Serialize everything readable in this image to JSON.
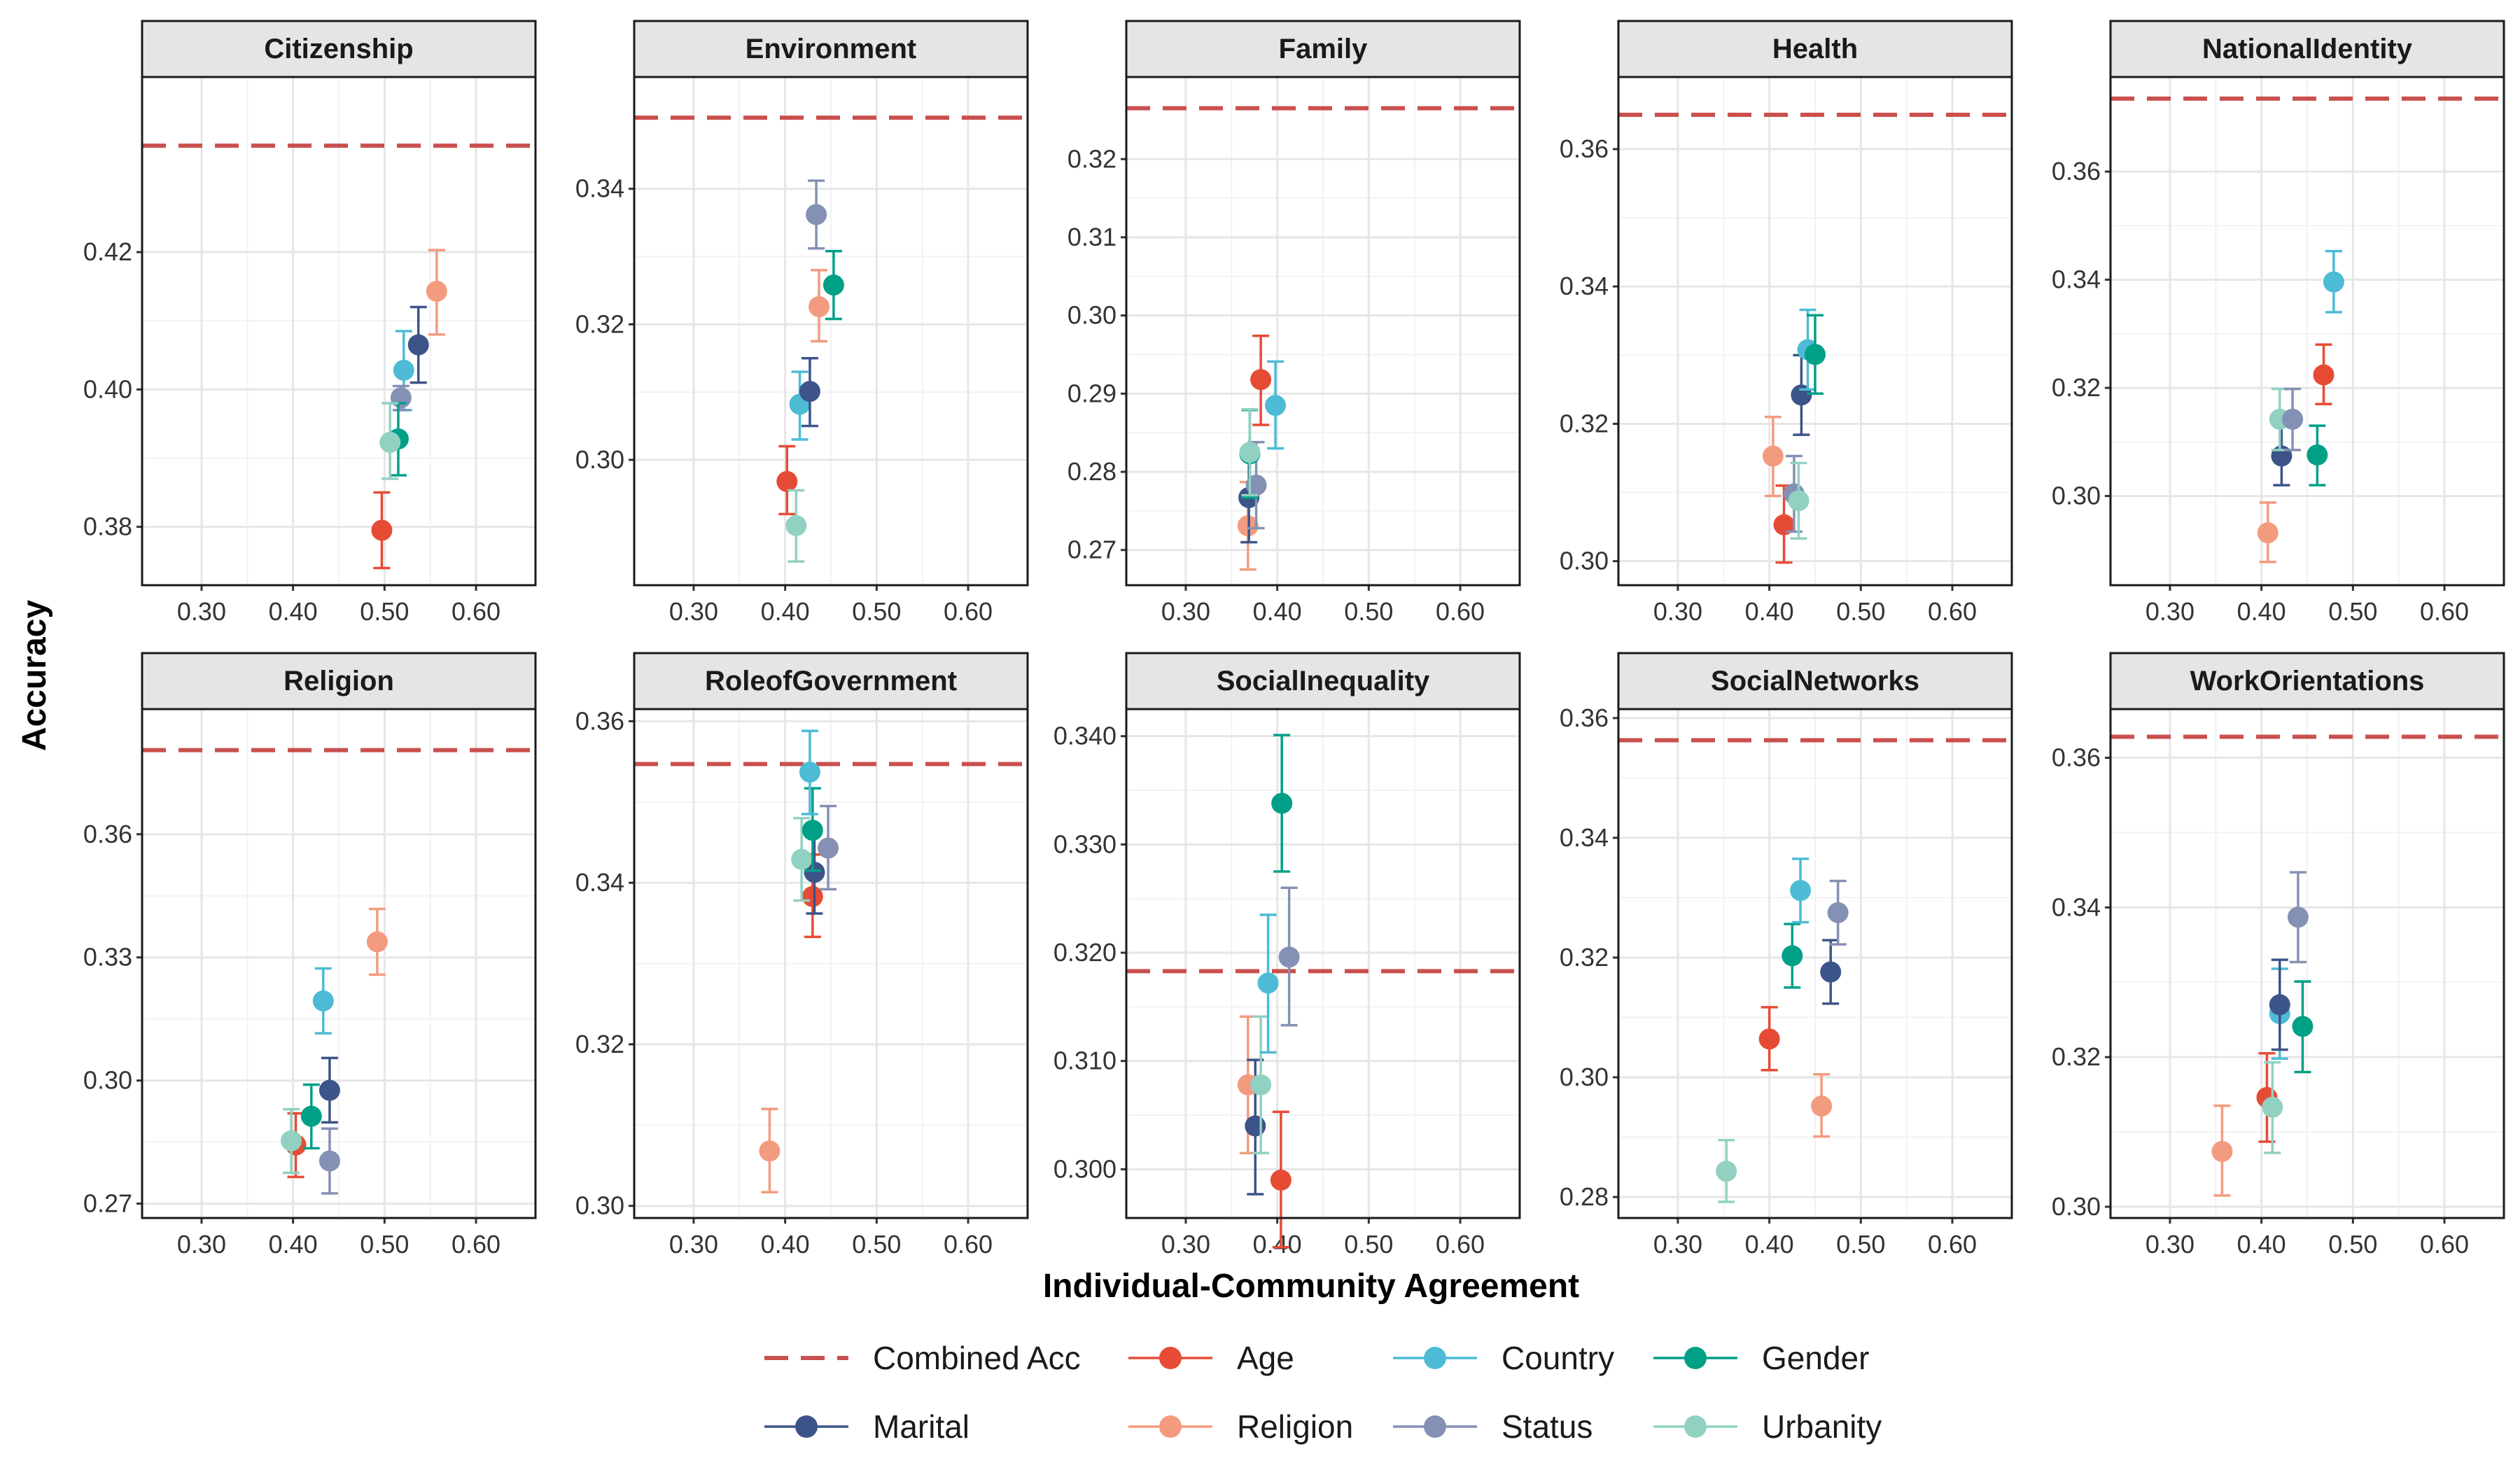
{
  "chart_data": {
    "type": "scatter",
    "xlabel": "Individual-Community Agreement",
    "ylabel": "Accuracy",
    "x_ticks": [
      0.3,
      0.4,
      0.5,
      0.6
    ],
    "x_tick_labels": [
      "0.30",
      "0.40",
      "0.50",
      "0.60"
    ],
    "xlim": [
      0.235,
      0.665
    ],
    "legend_position": "bottom",
    "colors": {
      "Combined Acc": "#C9504E",
      "Age": "#E64B35",
      "Country": "#4DBBD5",
      "Gender": "#00A087",
      "Marital": "#3C5488",
      "Religion": "#F39B7F",
      "Status": "#8491B4",
      "Urbanity": "#91D1C2"
    },
    "legend": [
      {
        "label": "Combined Acc",
        "kind": "dashed-line",
        "series": "Combined Acc"
      },
      {
        "label": "Age",
        "kind": "point",
        "series": "Age"
      },
      {
        "label": "Country",
        "kind": "point",
        "series": "Country"
      },
      {
        "label": "Gender",
        "kind": "point",
        "series": "Gender"
      },
      {
        "label": "Marital",
        "kind": "point",
        "series": "Marital"
      },
      {
        "label": "Religion",
        "kind": "point",
        "series": "Religion"
      },
      {
        "label": "Status",
        "kind": "point",
        "series": "Status"
      },
      {
        "label": "Urbanity",
        "kind": "point",
        "series": "Urbanity"
      }
    ],
    "panels": [
      {
        "title": "Citizenship",
        "ylim": [
          0.3715,
          0.4455
        ],
        "yticks": [
          0.38,
          0.4,
          0.42
        ],
        "ytick_labels": [
          "0.38",
          "0.40",
          "0.42"
        ],
        "combined_acc": 0.4355,
        "points": [
          {
            "series": "Age",
            "x": 0.497,
            "y": 0.3795,
            "lo": 0.374,
            "hi": 0.385
          },
          {
            "series": "Religion",
            "x": 0.557,
            "y": 0.4143,
            "lo": 0.408,
            "hi": 0.4203
          },
          {
            "series": "Marital",
            "x": 0.537,
            "y": 0.4065,
            "lo": 0.401,
            "hi": 0.412
          },
          {
            "series": "Country",
            "x": 0.521,
            "y": 0.4028,
            "lo": 0.397,
            "hi": 0.4085
          },
          {
            "series": "Status",
            "x": 0.518,
            "y": 0.3988,
            "lo": 0.397,
            "hi": 0.4005
          },
          {
            "series": "Gender",
            "x": 0.515,
            "y": 0.3928,
            "lo": 0.3875,
            "hi": 0.398
          },
          {
            "series": "Urbanity",
            "x": 0.506,
            "y": 0.3923,
            "lo": 0.387,
            "hi": 0.398
          }
        ]
      },
      {
        "title": "Environment",
        "ylim": [
          0.2815,
          0.3565
        ],
        "yticks": [
          0.3,
          0.32,
          0.34
        ],
        "ytick_labels": [
          "0.30",
          "0.32",
          "0.34"
        ],
        "combined_acc": 0.3505,
        "points": [
          {
            "series": "Age",
            "x": 0.402,
            "y": 0.2968,
            "lo": 0.292,
            "hi": 0.302
          },
          {
            "series": "Urbanity",
            "x": 0.412,
            "y": 0.2903,
            "lo": 0.285,
            "hi": 0.2955
          },
          {
            "series": "Country",
            "x": 0.416,
            "y": 0.3082,
            "lo": 0.303,
            "hi": 0.313
          },
          {
            "series": "Marital",
            "x": 0.427,
            "y": 0.3101,
            "lo": 0.305,
            "hi": 0.315
          },
          {
            "series": "Religion",
            "x": 0.437,
            "y": 0.3226,
            "lo": 0.3175,
            "hi": 0.328
          },
          {
            "series": "Status",
            "x": 0.434,
            "y": 0.3362,
            "lo": 0.3312,
            "hi": 0.3412
          },
          {
            "series": "Gender",
            "x": 0.453,
            "y": 0.3258,
            "lo": 0.3208,
            "hi": 0.3308
          }
        ]
      },
      {
        "title": "Family",
        "ylim": [
          0.2655,
          0.3305
        ],
        "yticks": [
          0.27,
          0.28,
          0.29,
          0.3,
          0.31,
          0.32
        ],
        "ytick_labels": [
          "0.27",
          "0.28",
          "0.29",
          "0.30",
          "0.31",
          "0.32"
        ],
        "combined_acc": 0.3265,
        "points": [
          {
            "series": "Religion",
            "x": 0.368,
            "y": 0.2731,
            "lo": 0.2675,
            "hi": 0.2787
          },
          {
            "series": "Marital",
            "x": 0.369,
            "y": 0.2767,
            "lo": 0.271,
            "hi": 0.2823
          },
          {
            "series": "Status",
            "x": 0.377,
            "y": 0.2783,
            "lo": 0.2728,
            "hi": 0.2838
          },
          {
            "series": "Gender",
            "x": 0.37,
            "y": 0.2823,
            "lo": 0.2767,
            "hi": 0.2879
          },
          {
            "series": "Urbanity",
            "x": 0.37,
            "y": 0.2825,
            "lo": 0.277,
            "hi": 0.288
          },
          {
            "series": "Age",
            "x": 0.382,
            "y": 0.2918,
            "lo": 0.286,
            "hi": 0.2974
          },
          {
            "series": "Country",
            "x": 0.398,
            "y": 0.2885,
            "lo": 0.283,
            "hi": 0.2941
          }
        ]
      },
      {
        "title": "Health",
        "ylim": [
          0.2965,
          0.3705
        ],
        "yticks": [
          0.3,
          0.32,
          0.34,
          0.36
        ],
        "ytick_labels": [
          "0.30",
          "0.32",
          "0.34",
          "0.36"
        ],
        "combined_acc": 0.365,
        "points": [
          {
            "series": "Religion",
            "x": 0.404,
            "y": 0.3153,
            "lo": 0.3095,
            "hi": 0.321
          },
          {
            "series": "Age",
            "x": 0.416,
            "y": 0.3053,
            "lo": 0.2998,
            "hi": 0.311
          },
          {
            "series": "Status",
            "x": 0.427,
            "y": 0.3098,
            "lo": 0.3043,
            "hi": 0.3153
          },
          {
            "series": "Urbanity",
            "x": 0.432,
            "y": 0.3088,
            "lo": 0.3033,
            "hi": 0.3143
          },
          {
            "series": "Marital",
            "x": 0.435,
            "y": 0.3242,
            "lo": 0.3184,
            "hi": 0.33
          },
          {
            "series": "Country",
            "x": 0.442,
            "y": 0.3308,
            "lo": 0.325,
            "hi": 0.3366
          },
          {
            "series": "Gender",
            "x": 0.45,
            "y": 0.3301,
            "lo": 0.3244,
            "hi": 0.3358
          }
        ]
      },
      {
        "title": "NationalIdentity",
        "ylim": [
          0.2835,
          0.3775
        ],
        "yticks": [
          0.3,
          0.32,
          0.34,
          0.36
        ],
        "ytick_labels": [
          "0.30",
          "0.32",
          "0.34",
          "0.36"
        ],
        "combined_acc": 0.3735,
        "points": [
          {
            "series": "Religion",
            "x": 0.407,
            "y": 0.2932,
            "lo": 0.2878,
            "hi": 0.2988
          },
          {
            "series": "Marital",
            "x": 0.422,
            "y": 0.3074,
            "lo": 0.302,
            "hi": 0.313
          },
          {
            "series": "Urbanity",
            "x": 0.42,
            "y": 0.3142,
            "lo": 0.3085,
            "hi": 0.3198
          },
          {
            "series": "Status",
            "x": 0.434,
            "y": 0.3142,
            "lo": 0.3085,
            "hi": 0.3198
          },
          {
            "series": "Gender",
            "x": 0.461,
            "y": 0.3076,
            "lo": 0.302,
            "hi": 0.313
          },
          {
            "series": "Age",
            "x": 0.468,
            "y": 0.3224,
            "lo": 0.317,
            "hi": 0.328
          },
          {
            "series": "Country",
            "x": 0.479,
            "y": 0.3396,
            "lo": 0.334,
            "hi": 0.3453
          }
        ]
      },
      {
        "title": "Religion",
        "ylim": [
          0.2665,
          0.3905
        ],
        "yticks": [
          0.27,
          0.3,
          0.33,
          0.36
        ],
        "ytick_labels": [
          "0.27",
          "0.30",
          "0.33",
          "0.36"
        ],
        "combined_acc": 0.3805,
        "points": [
          {
            "series": "Age",
            "x": 0.403,
            "y": 0.2843,
            "lo": 0.2765,
            "hi": 0.292
          },
          {
            "series": "Urbanity",
            "x": 0.398,
            "y": 0.2853,
            "lo": 0.2775,
            "hi": 0.293
          },
          {
            "series": "Gender",
            "x": 0.42,
            "y": 0.2913,
            "lo": 0.2835,
            "hi": 0.299
          },
          {
            "series": "Marital",
            "x": 0.44,
            "y": 0.2976,
            "lo": 0.2898,
            "hi": 0.3055
          },
          {
            "series": "Status",
            "x": 0.44,
            "y": 0.2804,
            "lo": 0.2725,
            "hi": 0.2883
          },
          {
            "series": "Country",
            "x": 0.433,
            "y": 0.3194,
            "lo": 0.3115,
            "hi": 0.3273
          },
          {
            "series": "Religion",
            "x": 0.492,
            "y": 0.3338,
            "lo": 0.3258,
            "hi": 0.3418
          }
        ]
      },
      {
        "title": "RoleofGovernment",
        "ylim": [
          0.2985,
          0.3615
        ],
        "yticks": [
          0.3,
          0.32,
          0.34,
          0.36
        ],
        "ytick_labels": [
          "0.30",
          "0.32",
          "0.34",
          "0.36"
        ],
        "combined_acc": 0.3547,
        "points": [
          {
            "series": "Religion",
            "x": 0.383,
            "y": 0.3068,
            "lo": 0.3017,
            "hi": 0.312
          },
          {
            "series": "Age",
            "x": 0.43,
            "y": 0.3383,
            "lo": 0.3333,
            "hi": 0.3435
          },
          {
            "series": "Marital",
            "x": 0.432,
            "y": 0.3413,
            "lo": 0.3362,
            "hi": 0.3465
          },
          {
            "series": "Urbanity",
            "x": 0.418,
            "y": 0.3429,
            "lo": 0.3378,
            "hi": 0.348
          },
          {
            "series": "Gender",
            "x": 0.43,
            "y": 0.3465,
            "lo": 0.3415,
            "hi": 0.3517
          },
          {
            "series": "Status",
            "x": 0.447,
            "y": 0.3443,
            "lo": 0.3392,
            "hi": 0.3495
          },
          {
            "series": "Country",
            "x": 0.427,
            "y": 0.3537,
            "lo": 0.3485,
            "hi": 0.3588
          }
        ]
      },
      {
        "title": "SocialInequality",
        "ylim": [
          0.2955,
          0.3425
        ],
        "yticks": [
          0.3,
          0.31,
          0.32,
          0.33,
          0.34
        ],
        "ytick_labels": [
          "0.300",
          "0.310",
          "0.320",
          "0.330",
          "0.340"
        ],
        "combined_acc": 0.3183,
        "points": [
          {
            "series": "Religion",
            "x": 0.368,
            "y": 0.3078,
            "lo": 0.3015,
            "hi": 0.3141
          },
          {
            "series": "Marital",
            "x": 0.376,
            "y": 0.304,
            "lo": 0.2977,
            "hi": 0.3101
          },
          {
            "series": "Urbanity",
            "x": 0.382,
            "y": 0.3078,
            "lo": 0.3015,
            "hi": 0.3141
          },
          {
            "series": "Age",
            "x": 0.404,
            "y": 0.299,
            "lo": 0.2928,
            "hi": 0.3053
          },
          {
            "series": "Country",
            "x": 0.39,
            "y": 0.3172,
            "lo": 0.3108,
            "hi": 0.3235
          },
          {
            "series": "Status",
            "x": 0.413,
            "y": 0.3196,
            "lo": 0.3133,
            "hi": 0.326
          },
          {
            "series": "Gender",
            "x": 0.405,
            "y": 0.3338,
            "lo": 0.3275,
            "hi": 0.3401
          }
        ]
      },
      {
        "title": "SocialNetworks",
        "ylim": [
          0.2765,
          0.3615
        ],
        "yticks": [
          0.28,
          0.3,
          0.32,
          0.34,
          0.36
        ],
        "ytick_labels": [
          "0.28",
          "0.30",
          "0.32",
          "0.34",
          "0.36"
        ],
        "combined_acc": 0.3563,
        "points": [
          {
            "series": "Urbanity",
            "x": 0.353,
            "y": 0.2843,
            "lo": 0.2792,
            "hi": 0.2895
          },
          {
            "series": "Age",
            "x": 0.4,
            "y": 0.3064,
            "lo": 0.3012,
            "hi": 0.3117
          },
          {
            "series": "Religion",
            "x": 0.457,
            "y": 0.2952,
            "lo": 0.2901,
            "hi": 0.3005
          },
          {
            "series": "Gender",
            "x": 0.425,
            "y": 0.3203,
            "lo": 0.315,
            "hi": 0.3256
          },
          {
            "series": "Country",
            "x": 0.434,
            "y": 0.3312,
            "lo": 0.3259,
            "hi": 0.3365
          },
          {
            "series": "Marital",
            "x": 0.467,
            "y": 0.3176,
            "lo": 0.3123,
            "hi": 0.3229
          },
          {
            "series": "Status",
            "x": 0.475,
            "y": 0.3275,
            "lo": 0.3222,
            "hi": 0.3328
          }
        ]
      },
      {
        "title": "WorkOrientations",
        "ylim": [
          0.2985,
          0.3665
        ],
        "yticks": [
          0.3,
          0.32,
          0.34,
          0.36
        ],
        "ytick_labels": [
          "0.30",
          "0.32",
          "0.34",
          "0.36"
        ],
        "combined_acc": 0.3628,
        "points": [
          {
            "series": "Religion",
            "x": 0.357,
            "y": 0.3074,
            "lo": 0.3015,
            "hi": 0.3135
          },
          {
            "series": "Age",
            "x": 0.406,
            "y": 0.3146,
            "lo": 0.3087,
            "hi": 0.3205
          },
          {
            "series": "Urbanity",
            "x": 0.412,
            "y": 0.3133,
            "lo": 0.3072,
            "hi": 0.3193
          },
          {
            "series": "Country",
            "x": 0.42,
            "y": 0.3258,
            "lo": 0.3198,
            "hi": 0.3318
          },
          {
            "series": "Marital",
            "x": 0.42,
            "y": 0.327,
            "lo": 0.321,
            "hi": 0.333
          },
          {
            "series": "Gender",
            "x": 0.445,
            "y": 0.3241,
            "lo": 0.318,
            "hi": 0.3301
          },
          {
            "series": "Status",
            "x": 0.44,
            "y": 0.3387,
            "lo": 0.3327,
            "hi": 0.3447
          }
        ]
      }
    ]
  }
}
